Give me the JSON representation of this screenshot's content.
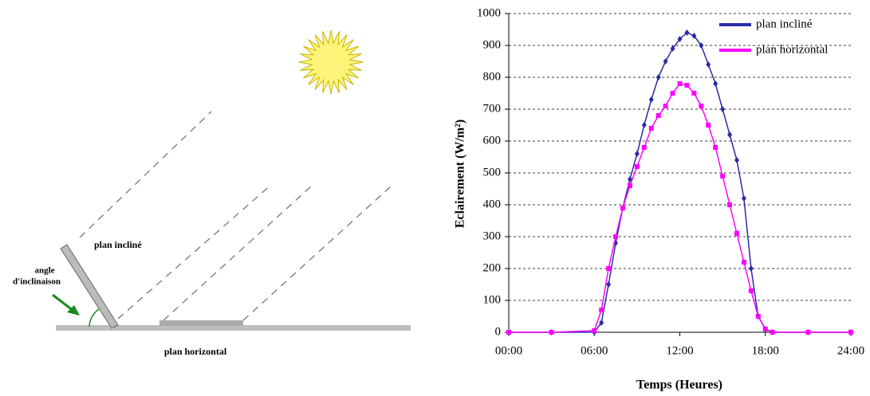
{
  "diagram": {
    "labels": {
      "inclined": "plan incliné",
      "angle_1": "angle",
      "angle_2": "d'inclinaison",
      "horizontal": "plan horizontal"
    }
  },
  "chart_data": {
    "type": "line",
    "y_label": "Eclairement  (W/m²)",
    "x_label": "Temps (Heures)",
    "x": [
      0,
      3,
      6,
      6.5,
      7,
      7.5,
      8,
      8.5,
      9,
      9.5,
      10,
      10.5,
      11,
      11.5,
      12,
      12.5,
      13,
      13.5,
      14,
      14.5,
      15,
      15.5,
      16,
      16.5,
      17,
      17.5,
      18,
      18.5,
      21,
      24
    ],
    "series": [
      {
        "name": "plan incliné",
        "color": "#2b2ba6",
        "marker": "diamond",
        "values": [
          0,
          0,
          0,
          30,
          150,
          280,
          390,
          480,
          560,
          650,
          730,
          800,
          850,
          890,
          920,
          940,
          930,
          900,
          840,
          780,
          700,
          620,
          540,
          420,
          200,
          50,
          10,
          0,
          0,
          0
        ]
      },
      {
        "name": "plan horizontal",
        "color": "#ff00ff",
        "marker": "square",
        "values": [
          0,
          0,
          5,
          70,
          200,
          300,
          390,
          460,
          520,
          580,
          640,
          680,
          710,
          750,
          780,
          775,
          750,
          710,
          650,
          580,
          490,
          400,
          310,
          220,
          130,
          50,
          10,
          0,
          0,
          0
        ]
      }
    ],
    "xlim": [
      0,
      24
    ],
    "xticks": [
      {
        "value": 0,
        "label": "00:00"
      },
      {
        "value": 6,
        "label": "06:00"
      },
      {
        "value": 12,
        "label": "12:00"
      },
      {
        "value": 18,
        "label": "18:00"
      },
      {
        "value": 24,
        "label": "24:00"
      }
    ],
    "ylim": [
      0,
      1000
    ],
    "yticks": [
      0,
      100,
      200,
      300,
      400,
      500,
      600,
      700,
      800,
      900,
      1000
    ],
    "grid": true,
    "legend": "upper right"
  }
}
